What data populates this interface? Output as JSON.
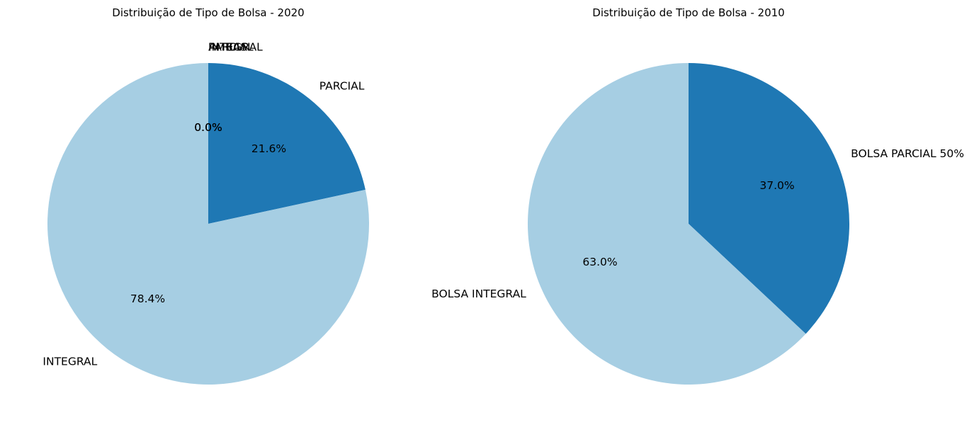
{
  "chart_data": [
    {
      "type": "pie",
      "title": "Distribuição de Tipo de Bolsa - 2020",
      "start_angle_deg": 90,
      "direction": "clockwise",
      "slices": [
        {
          "label": "PARCIAL",
          "value": 21.6,
          "pct_label": "21.6%",
          "color": "#1f78b4"
        },
        {
          "label": "INTEGRAL",
          "value": 78.4,
          "pct_label": "78.4%",
          "color": "#a6cee3"
        },
        {
          "label": "INTEGRAL",
          "value": 0.0,
          "pct_label": "0.0%",
          "color": "#b2df8a"
        },
        {
          "label": "PARCIAL",
          "value": 0.0,
          "pct_label": "0.0%",
          "color": "#33a02c"
        },
        {
          "label": "AMBAS",
          "value": 0.0,
          "pct_label": "0.0%",
          "color": "#fb9a99"
        }
      ]
    },
    {
      "type": "pie",
      "title": "Distribuição de Tipo de Bolsa - 2010",
      "start_angle_deg": 90,
      "direction": "clockwise",
      "slices": [
        {
          "label": "BOLSA PARCIAL 50%",
          "value": 37.0,
          "pct_label": "37.0%",
          "color": "#1f78b4"
        },
        {
          "label": "BOLSA INTEGRAL",
          "value": 63.0,
          "pct_label": "63.0%",
          "color": "#a6cee3"
        }
      ]
    }
  ]
}
